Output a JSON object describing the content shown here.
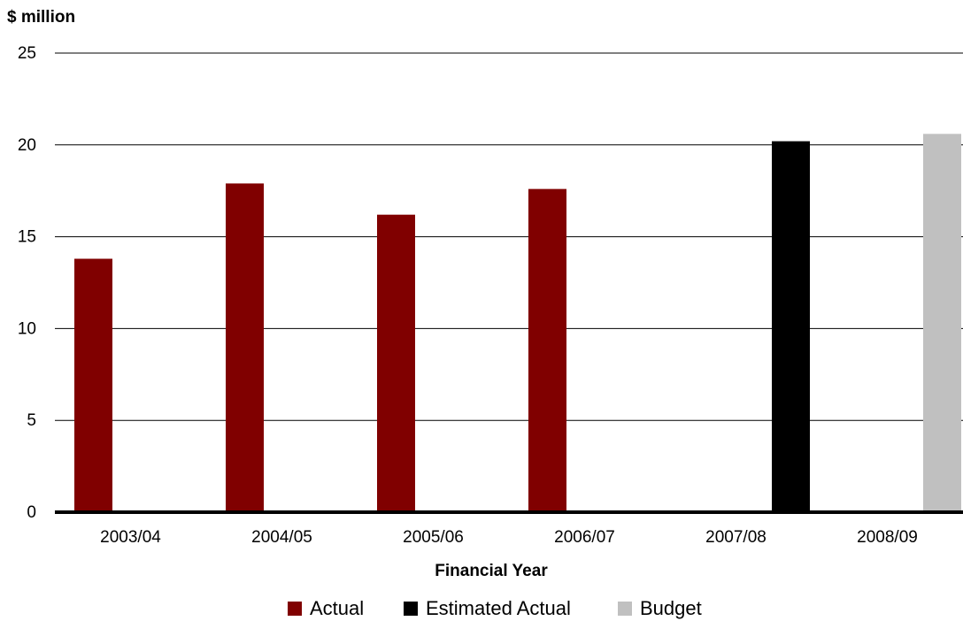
{
  "chart_data": {
    "type": "bar",
    "unit_label": "$ million",
    "xlabel": "Financial Year",
    "ylabel": "",
    "ylim": [
      0,
      25
    ],
    "yticks": [
      "0",
      "5",
      "10",
      "15",
      "20",
      "25"
    ],
    "grid": true,
    "legend_position": "bottom",
    "categories": [
      "2003/04",
      "2004/05",
      "2005/06",
      "2006/07",
      "2007/08",
      "2008/09"
    ],
    "series": [
      {
        "name": "Actual",
        "color": "#800000",
        "values": [
          13.8,
          17.9,
          16.2,
          17.6,
          null,
          null
        ]
      },
      {
        "name": "Estimated Actual",
        "color": "#000000",
        "values": [
          null,
          null,
          null,
          null,
          20.2,
          null
        ]
      },
      {
        "name": "Budget",
        "color": "#c0c0c0",
        "values": [
          null,
          null,
          null,
          null,
          null,
          20.6
        ]
      }
    ]
  }
}
